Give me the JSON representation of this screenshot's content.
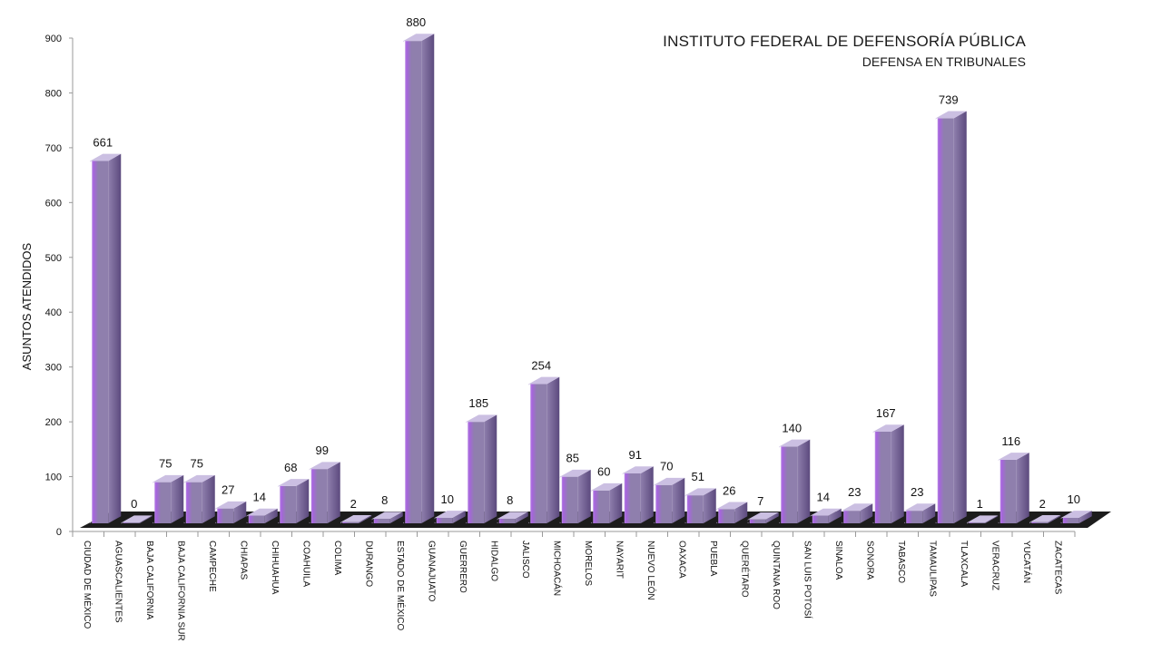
{
  "title": {
    "line1": "INSTITUTO FEDERAL DE DEFENSORÍA PÚBLICA",
    "line2": "DEFENSA EN TRIBUNALES"
  },
  "colors": {
    "bar_main": "#8f7fad",
    "bar_light": "#cbbfe2",
    "bar_dark": "#5c4a7e",
    "bar_glow": "#a864e0",
    "floor": "#1c1c1c",
    "axis": "#9a9a9a"
  },
  "chart_data": {
    "type": "bar",
    "title": "INSTITUTO FEDERAL DE DEFENSORÍA PÚBLICA — DEFENSA EN TRIBUNALES",
    "ylabel": "ASUNTOS ATENDIDOS",
    "xlabel": "",
    "ylim": [
      0,
      900
    ],
    "yticks": [
      0,
      100,
      200,
      300,
      400,
      500,
      600,
      700,
      800,
      900
    ],
    "grid": false,
    "legend": "none",
    "categories": [
      "CIUDAD DE MÉXICO",
      "AGUASCALIENTES",
      "BAJA CALIFORNIA",
      "BAJA CALIFORNIA SUR",
      "CAMPECHE",
      "CHIAPAS",
      "CHIHUAHUA",
      "COAHUILA",
      "COLIMA",
      "DURANGO",
      "ESTADO DE MÉXICO",
      "GUANAJUATO",
      "GUERRERO",
      "HIDALGO",
      "JALISCO",
      "MICHOACÁN",
      "MORELOS",
      "NAYARIT",
      "NUEVO LEÓN",
      "OAXACA",
      "PUEBLA",
      "QUERÉTARO",
      "QUINTANA ROO",
      "SAN LUIS POTOSÍ",
      "SINALOA",
      "SONORA",
      "TABASCO",
      "TAMAULIPAS",
      "TLAXCALA",
      "VERACRUZ",
      "YUCATÁN",
      "ZACATECAS"
    ],
    "values": [
      661,
      0,
      75,
      75,
      27,
      14,
      68,
      99,
      2,
      8,
      880,
      10,
      185,
      8,
      254,
      85,
      60,
      91,
      70,
      51,
      26,
      7,
      140,
      14,
      23,
      167,
      23,
      739,
      1,
      116,
      2,
      10
    ]
  }
}
